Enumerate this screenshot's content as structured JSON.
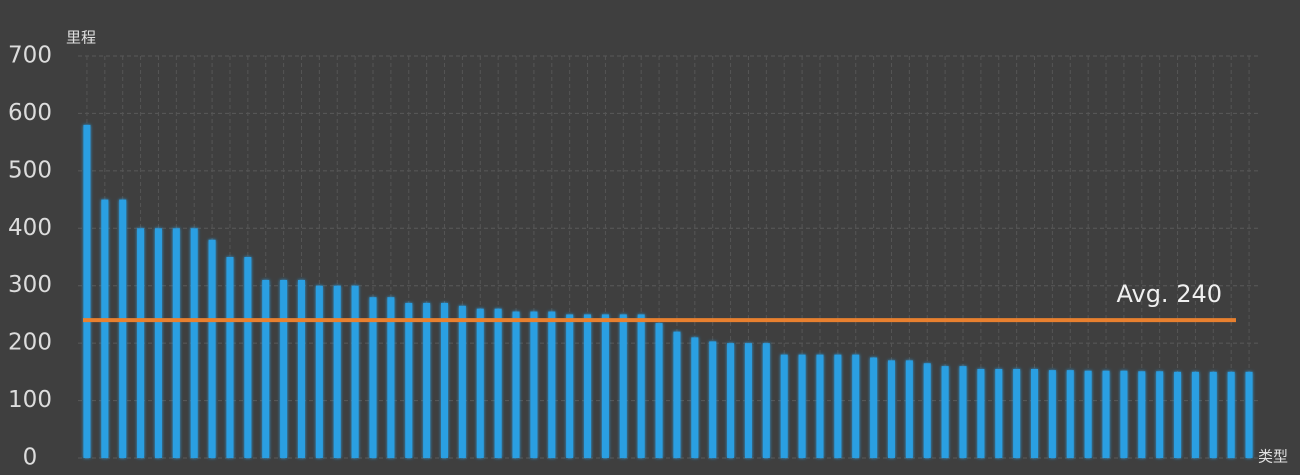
{
  "chart_data": {
    "type": "bar",
    "y_axis_label": "里程",
    "x_axis_label": "类型",
    "values": [
      580,
      450,
      450,
      400,
      400,
      400,
      400,
      380,
      350,
      350,
      310,
      310,
      310,
      300,
      300,
      300,
      280,
      280,
      270,
      270,
      270,
      265,
      260,
      260,
      255,
      255,
      255,
      250,
      250,
      250,
      250,
      250,
      235,
      220,
      210,
      203,
      200,
      200,
      200,
      180,
      180,
      180,
      180,
      180,
      175,
      170,
      170,
      165,
      160,
      160,
      155,
      155,
      155,
      155,
      153,
      153,
      152,
      152,
      152,
      151,
      151,
      150,
      150,
      150,
      150,
      150
    ],
    "color": "#2b9fe2",
    "ylim": [
      0,
      700
    ],
    "yticks": [
      0,
      100,
      200,
      300,
      400,
      500,
      600,
      700
    ],
    "grid": true,
    "average": {
      "value": 240,
      "label": "Avg. 240",
      "color": "#e8802f"
    }
  }
}
